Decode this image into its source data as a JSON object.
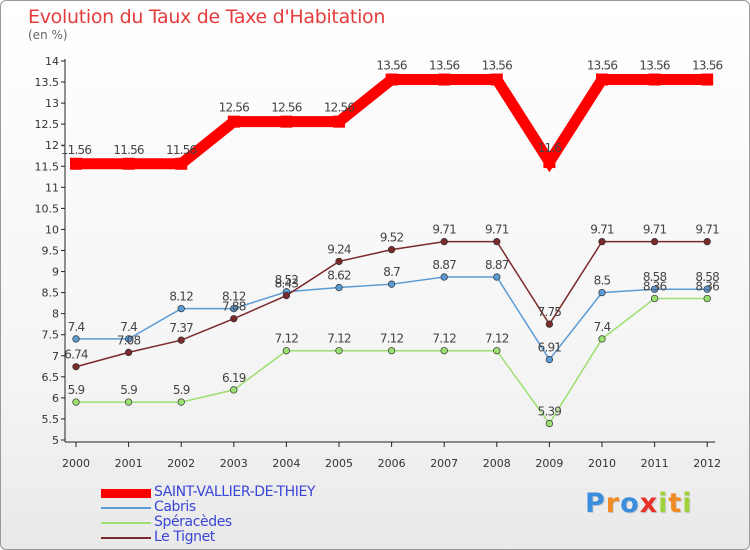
{
  "header": {
    "title": "Evolution du Taux de Taxe d'Habitation",
    "unit": "(en %)"
  },
  "chart_data": {
    "type": "line",
    "title": "Evolution du Taux de Taxe d'Habitation",
    "ylabel": "(en %)",
    "xlabel": "",
    "x": [
      "2000",
      "2001",
      "2002",
      "2003",
      "2004",
      "2005",
      "2006",
      "2007",
      "2008",
      "2009",
      "2010",
      "2011",
      "2012"
    ],
    "ylim": [
      5,
      14
    ],
    "yticks": [
      "5",
      "5.5",
      "6",
      "6.5",
      "7",
      "7.5",
      "8",
      "8.5",
      "9",
      "9.5",
      "10",
      "10.5",
      "11",
      "11.5",
      "12",
      "12.5",
      "13",
      "13.5",
      "14"
    ],
    "grid": false,
    "legend_position": "bottom-left",
    "series": [
      {
        "name": "SAINT-VALLIER-DE-THIEY",
        "color": "#ff0000",
        "values": [
          11.56,
          11.56,
          11.56,
          12.56,
          12.56,
          12.56,
          13.56,
          13.56,
          13.56,
          11.6,
          13.56,
          13.56,
          13.56
        ],
        "labels": [
          "11.56",
          "11.56",
          "11.56",
          "12.56",
          "12.56",
          "12.56",
          "13.56",
          "13.56",
          "13.56",
          "11.6",
          "13.56",
          "13.56",
          "13.56"
        ]
      },
      {
        "name": "Cabris",
        "color": "#5b9bd5",
        "values": [
          7.4,
          7.4,
          8.12,
          8.12,
          8.52,
          8.62,
          8.7,
          8.87,
          8.87,
          6.91,
          8.5,
          8.58,
          8.58
        ],
        "labels": [
          "7.4",
          "7.4",
          "8.12",
          "8.12",
          "8.52",
          "8.62",
          "8.7",
          "8.87",
          "8.87",
          "6.91",
          "8.5",
          "8.58",
          "8.58"
        ]
      },
      {
        "name": "Spéracèdes",
        "color": "#9be070",
        "values": [
          5.9,
          5.9,
          5.9,
          6.19,
          7.12,
          7.12,
          7.12,
          7.12,
          7.12,
          5.39,
          7.4,
          8.36,
          8.36
        ],
        "labels": [
          "5.9",
          "5.9",
          "5.9",
          "6.19",
          "7.12",
          "7.12",
          "7.12",
          "7.12",
          "7.12",
          "5.39",
          "7.4",
          "8.36",
          "8.36"
        ]
      },
      {
        "name": "Le Tignet",
        "color": "#7a2a2a",
        "values": [
          6.74,
          7.08,
          7.37,
          7.88,
          8.43,
          9.24,
          9.52,
          9.71,
          9.71,
          7.75,
          9.71,
          9.71,
          9.71
        ],
        "labels": [
          "6.74",
          "7.08",
          "7.37",
          "7.88",
          "8.43",
          "9.24",
          "9.52",
          "9.71",
          "9.71",
          "7.75",
          "9.71",
          "9.71",
          "9.71"
        ]
      }
    ]
  },
  "logo": {
    "text": "Proxiti",
    "letters": [
      "P",
      "r",
      "o",
      "x",
      "i",
      "t",
      "i"
    ],
    "colors": [
      "#3b8ede",
      "#f08a24",
      "#3b8ede",
      "#e8312a",
      "#9dd23a",
      "#f08a24",
      "#9dd23a"
    ]
  }
}
